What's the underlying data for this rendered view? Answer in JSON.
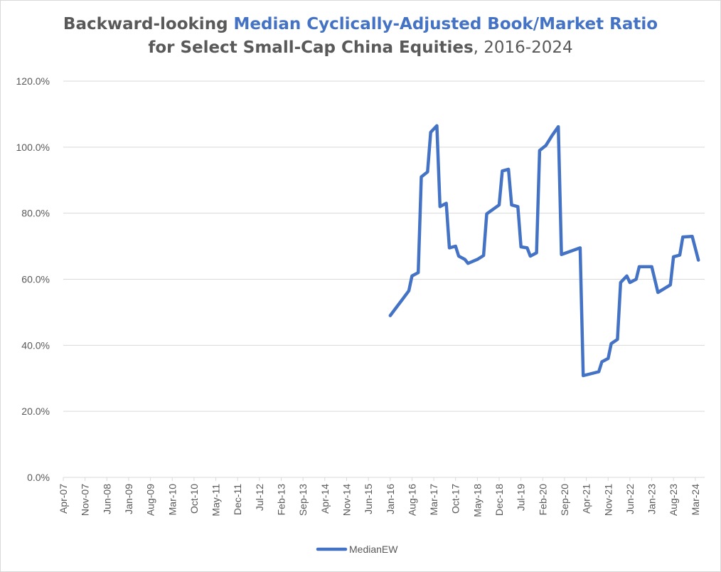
{
  "title": {
    "part1": "Backward-looking ",
    "part2": "Median Cyclically-Adjusted Book/Market Ratio",
    "part3": "for Select Small-Cap China Equities",
    "part4": ", 2016-2024"
  },
  "colors": {
    "series": "#4472c4",
    "grid": "#d9d9d9",
    "text": "#595959"
  },
  "chart_data": {
    "type": "line",
    "title": "Backward-looking Median Cyclically-Adjusted Book/Market Ratio for Select Small-Cap China Equities, 2016-2024",
    "ylim": [
      0,
      120
    ],
    "y_ticks": [
      "0.0%",
      "20.0%",
      "40.0%",
      "60.0%",
      "80.0%",
      "100.0%",
      "120.0%"
    ],
    "x_ticks": [
      "Apr-07",
      "Nov-07",
      "Jun-08",
      "Jan-09",
      "Aug-09",
      "Mar-10",
      "Oct-10",
      "May-11",
      "Dec-11",
      "Jul-12",
      "Feb-13",
      "Sep-13",
      "Apr-14",
      "Nov-14",
      "Jun-15",
      "Jan-16",
      "Aug-16",
      "Mar-17",
      "Oct-17",
      "May-18",
      "Dec-18",
      "Jul-19",
      "Feb-20",
      "Sep-20",
      "Apr-21",
      "Nov-21",
      "Jun-22",
      "Jan-23",
      "Aug-23",
      "Mar-24"
    ],
    "x_range": [
      "2007-04",
      "2024-06"
    ],
    "grid": true,
    "legend_position": "bottom",
    "series": [
      {
        "name": "MedianEW",
        "color": "#4472c4",
        "points": [
          [
            "2016-01",
            49.0
          ],
          [
            "2016-03",
            51.5
          ],
          [
            "2016-05",
            54.0
          ],
          [
            "2016-07",
            56.5
          ],
          [
            "2016-08",
            61.0
          ],
          [
            "2016-10",
            62.0
          ],
          [
            "2016-11",
            91.0
          ],
          [
            "2017-01",
            92.5
          ],
          [
            "2017-02",
            104.5
          ],
          [
            "2017-04",
            106.5
          ],
          [
            "2017-05",
            82.0
          ],
          [
            "2017-07",
            83.0
          ],
          [
            "2017-08",
            69.5
          ],
          [
            "2017-10",
            70.0
          ],
          [
            "2017-11",
            67.0
          ],
          [
            "2018-01",
            66.0
          ],
          [
            "2018-02",
            64.8
          ],
          [
            "2018-05",
            66.0
          ],
          [
            "2018-07",
            67.2
          ],
          [
            "2018-08",
            79.8
          ],
          [
            "2018-12",
            82.5
          ],
          [
            "2019-01",
            92.8
          ],
          [
            "2019-03",
            93.3
          ],
          [
            "2019-04",
            82.5
          ],
          [
            "2019-06",
            82.0
          ],
          [
            "2019-07",
            69.8
          ],
          [
            "2019-09",
            69.5
          ],
          [
            "2019-10",
            67.0
          ],
          [
            "2019-12",
            68.0
          ],
          [
            "2020-01",
            99.0
          ],
          [
            "2020-03",
            100.5
          ],
          [
            "2020-05",
            103.5
          ],
          [
            "2020-07",
            106.2
          ],
          [
            "2020-08",
            67.5
          ],
          [
            "2021-02",
            69.5
          ],
          [
            "2021-03",
            30.8
          ],
          [
            "2021-08",
            32.0
          ],
          [
            "2021-09",
            35.0
          ],
          [
            "2021-11",
            36.0
          ],
          [
            "2021-12",
            40.5
          ],
          [
            "2022-02",
            41.8
          ],
          [
            "2022-03",
            59.0
          ],
          [
            "2022-05",
            61.0
          ],
          [
            "2022-06",
            59.0
          ],
          [
            "2022-08",
            60.0
          ],
          [
            "2022-09",
            63.8
          ],
          [
            "2023-01",
            63.8
          ],
          [
            "2023-03",
            56.0
          ],
          [
            "2023-07",
            58.3
          ],
          [
            "2023-08",
            66.8
          ],
          [
            "2023-10",
            67.3
          ],
          [
            "2023-11",
            72.8
          ],
          [
            "2024-02",
            73.0
          ],
          [
            "2024-04",
            65.8
          ]
        ]
      }
    ]
  }
}
